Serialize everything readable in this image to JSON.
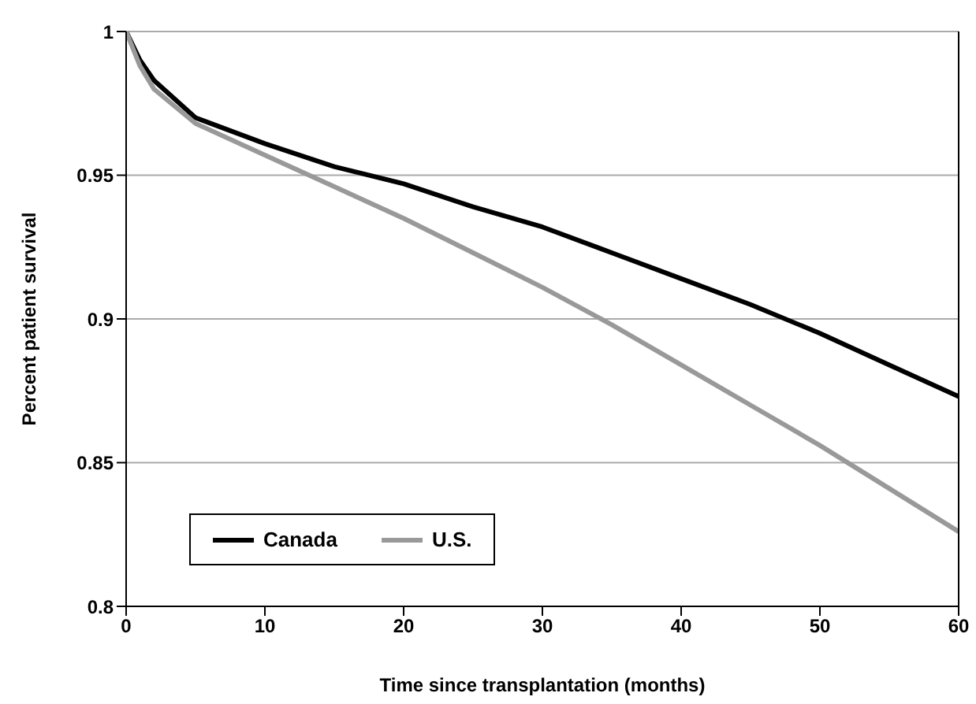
{
  "chart_data": {
    "type": "line",
    "xlabel": "Time since transplantation (months)",
    "ylabel": "Percent patient survival",
    "x": [
      0,
      1,
      2,
      5,
      10,
      15,
      20,
      25,
      30,
      35,
      40,
      45,
      50,
      55,
      60
    ],
    "series": [
      {
        "name": "Canada",
        "color": "#000000",
        "values": [
          1,
          0.99,
          0.983,
          0.97,
          0.961,
          0.953,
          0.947,
          0.939,
          0.932,
          0.923,
          0.914,
          0.905,
          0.895,
          0.884,
          0.873
        ]
      },
      {
        "name": "U.S.",
        "color": "#999999",
        "values": [
          1,
          0.988,
          0.98,
          0.968,
          0.957,
          0.946,
          0.935,
          0.923,
          0.911,
          0.898,
          0.884,
          0.87,
          0.856,
          0.841,
          0.826
        ]
      }
    ],
    "xlim": [
      0,
      60
    ],
    "xticks": [
      0,
      10,
      20,
      30,
      40,
      50,
      60
    ],
    "ylim": [
      0.8,
      1
    ],
    "yticks": [
      0.8,
      0.85,
      0.9,
      0.95,
      1
    ],
    "grid": "y",
    "legend": "bottom left",
    "marker": "none",
    "line_style": "solid"
  }
}
